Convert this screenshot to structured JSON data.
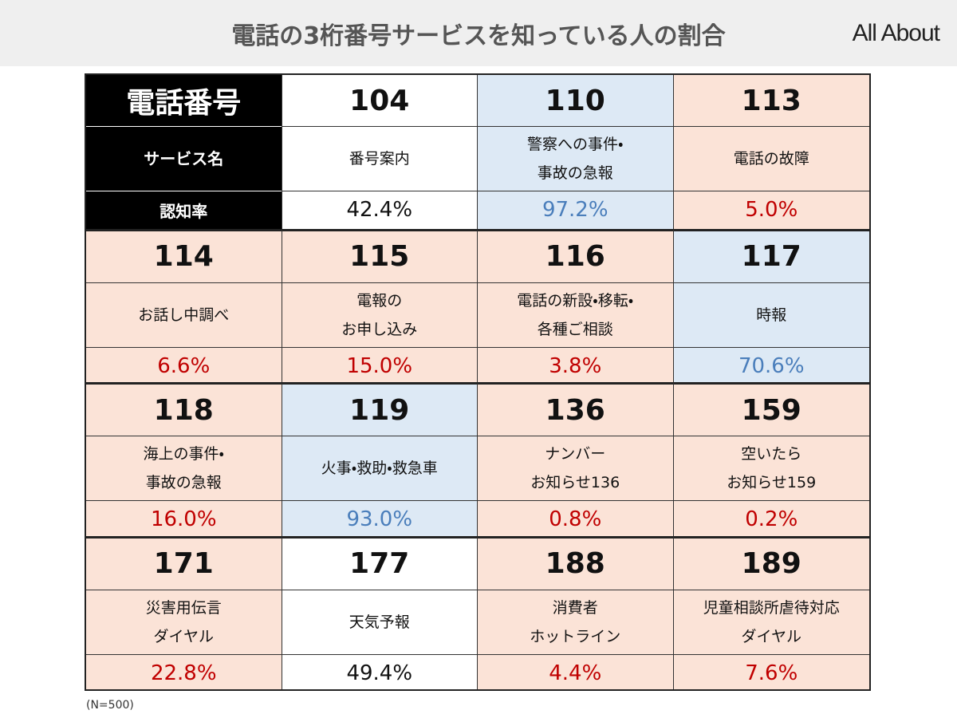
{
  "header": {
    "title": "電話の3桁番号サービスを知っている人の割合",
    "logo": "All About"
  },
  "table": {
    "header_cell": {
      "number_label": "電話番号",
      "service_label": "サービス名",
      "rate_label": "認知率"
    },
    "cells": [
      {
        "number": "104",
        "service": [
          "番号案内"
        ],
        "rate": "42.4%",
        "fill": "#ffffff",
        "rate_color": "#111111"
      },
      {
        "number": "110",
        "service": [
          "警察への事件・",
          "事故の急報"
        ],
        "rate": "97.2%",
        "fill": "#dde9f5",
        "rate_color": "#4a7ebb"
      },
      {
        "number": "113",
        "service": [
          "電話の故障"
        ],
        "rate": "5.0%",
        "fill": "#fbe3d7",
        "rate_color": "#c00000"
      },
      {
        "number": "114",
        "service": [
          "お話し中調べ"
        ],
        "rate": "6.6%",
        "fill": "#fbe3d7",
        "rate_color": "#c00000"
      },
      {
        "number": "115",
        "service": [
          "電報の",
          "お申し込み"
        ],
        "rate": "15.0%",
        "fill": "#fbe3d7",
        "rate_color": "#c00000"
      },
      {
        "number": "116",
        "service": [
          "電話の新設・移転・",
          "各種ご相談"
        ],
        "rate": "3.8%",
        "fill": "#fbe3d7",
        "rate_color": "#c00000"
      },
      {
        "number": "117",
        "service": [
          "時報"
        ],
        "rate": "70.6%",
        "fill": "#dde9f5",
        "rate_color": "#4a7ebb"
      },
      {
        "number": "118",
        "service": [
          "海上の事件・",
          "事故の急報"
        ],
        "rate": "16.0%",
        "fill": "#fbe3d7",
        "rate_color": "#c00000"
      },
      {
        "number": "119",
        "service": [
          "火事・救助・救急車"
        ],
        "rate": "93.0%",
        "fill": "#dde9f5",
        "rate_color": "#4a7ebb"
      },
      {
        "number": "136",
        "service": [
          "ナンバー",
          "お知らせ136"
        ],
        "rate": "0.8%",
        "fill": "#fbe3d7",
        "rate_color": "#c00000"
      },
      {
        "number": "159",
        "service": [
          "空いたら",
          "お知らせ159"
        ],
        "rate": "0.2%",
        "fill": "#fbe3d7",
        "rate_color": "#c00000"
      },
      {
        "number": "171",
        "service": [
          "災害用伝言",
          "ダイヤル"
        ],
        "rate": "22.8%",
        "fill": "#fbe3d7",
        "rate_color": "#c00000"
      },
      {
        "number": "177",
        "service": [
          "天気予報"
        ],
        "rate": "49.4%",
        "fill": "#ffffff",
        "rate_color": "#111111"
      },
      {
        "number": "188",
        "service": [
          "消費者",
          "ホットライン"
        ],
        "rate": "4.4%",
        "fill": "#fbe3d7",
        "rate_color": "#c00000"
      },
      {
        "number": "189",
        "service": [
          "児童相談所虐待対応",
          "ダイヤル"
        ],
        "rate": "7.6%",
        "fill": "#fbe3d7",
        "rate_color": "#c00000"
      }
    ]
  },
  "footnote": "(N=500)"
}
